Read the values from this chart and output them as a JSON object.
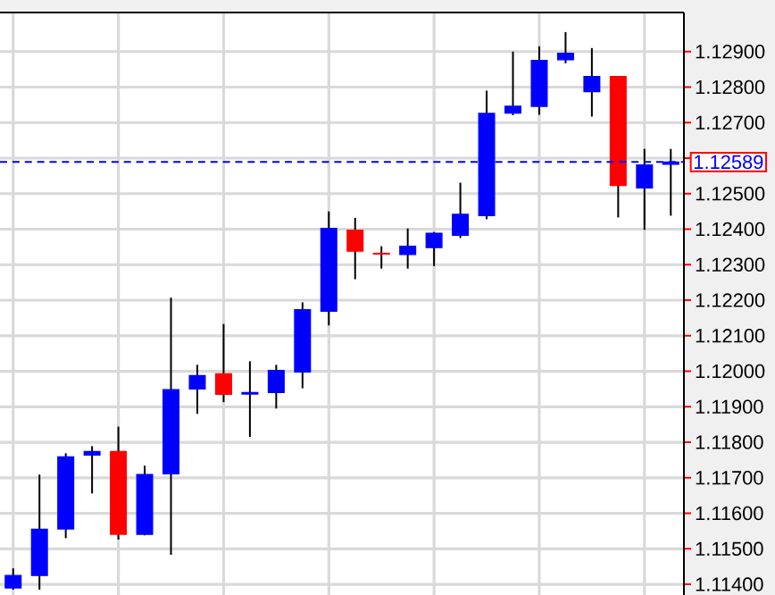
{
  "chart_data": {
    "type": "candlestick",
    "categories": [
      null,
      null,
      null,
      null,
      null,
      null,
      null,
      null,
      null,
      null,
      null,
      null,
      null,
      null,
      null,
      null,
      null,
      null,
      null,
      null,
      null,
      null,
      null,
      null,
      null,
      null
    ],
    "ohlc": [
      [
        1.1139,
        1.11445,
        1.11385,
        1.11425
      ],
      [
        1.11425,
        1.11709,
        1.11385,
        1.11555
      ],
      [
        1.11556,
        1.11769,
        1.1153,
        1.11759
      ],
      [
        1.11764,
        1.11789,
        1.11656,
        1.11774
      ],
      [
        1.11774,
        1.11844,
        1.11526,
        1.11541
      ],
      [
        1.11541,
        1.11734,
        1.11538,
        1.11709
      ],
      [
        1.11711,
        1.12207,
        1.11483,
        1.11948
      ],
      [
        1.1195,
        1.12018,
        1.1188,
        1.11988
      ],
      [
        1.11993,
        1.12133,
        1.11913,
        1.11935
      ],
      [
        1.11936,
        1.12028,
        1.11815,
        1.1194
      ],
      [
        1.1194,
        1.12018,
        1.11895,
        1.12002
      ],
      [
        1.11998,
        1.12194,
        1.11952,
        1.12173
      ],
      [
        1.12169,
        1.1245,
        1.12129,
        1.12402
      ],
      [
        1.12397,
        1.12432,
        1.12259,
        1.12338
      ],
      [
        1.12332,
        1.12352,
        1.12289,
        1.1233
      ],
      [
        1.12329,
        1.12402,
        1.12289,
        1.12352
      ],
      [
        1.12348,
        1.12392,
        1.12296,
        1.12388
      ],
      [
        1.12383,
        1.12531,
        1.12375,
        1.12442
      ],
      [
        1.12438,
        1.1279,
        1.12428,
        1.12726
      ],
      [
        1.12727,
        1.129,
        1.12721,
        1.12746
      ],
      [
        1.12746,
        1.12915,
        1.12722,
        1.12875
      ],
      [
        1.12877,
        1.12955,
        1.12867,
        1.12895
      ],
      [
        1.12787,
        1.1291,
        1.12717,
        1.1283
      ],
      [
        1.1283,
        1.1283,
        1.12433,
        1.12523
      ],
      [
        1.12516,
        1.12626,
        1.12398,
        1.12581
      ],
      [
        1.12583,
        1.12626,
        1.12438,
        1.12589
      ]
    ],
    "colors": [
      "#0000ff",
      "#0000ff",
      "#0000ff",
      "#0000ff",
      "#ff0000",
      "#0000ff",
      "#0000ff",
      "#0000ff",
      "#ff0000",
      "#0000ff",
      "#0000ff",
      "#0000ff",
      "#0000ff",
      "#ff0000",
      "#ff0000",
      "#0000ff",
      "#0000ff",
      "#0000ff",
      "#0000ff",
      "#0000ff",
      "#0000ff",
      "#0000ff",
      "#0000ff",
      "#ff0000",
      "#0000ff",
      "#0000ff"
    ],
    "ylim": [
      1.1137,
      1.1301
    ],
    "yticks": [
      {
        "value": 1.114,
        "label": "1.11400"
      },
      {
        "value": 1.115,
        "label": "1.11500"
      },
      {
        "value": 1.116,
        "label": "1.11600"
      },
      {
        "value": 1.117,
        "label": "1.11700"
      },
      {
        "value": 1.118,
        "label": "1.11800"
      },
      {
        "value": 1.119,
        "label": "1.11900"
      },
      {
        "value": 1.12,
        "label": "1.12000"
      },
      {
        "value": 1.121,
        "label": "1.12100"
      },
      {
        "value": 1.122,
        "label": "1.12200"
      },
      {
        "value": 1.123,
        "label": "1.12300"
      },
      {
        "value": 1.124,
        "label": "1.12400"
      },
      {
        "value": 1.125,
        "label": "1.12500"
      },
      {
        "value": 1.126,
        "label": null
      },
      {
        "value": 1.127,
        "label": "1.12700"
      },
      {
        "value": 1.128,
        "label": "1.12800"
      },
      {
        "value": 1.129,
        "label": "1.12900"
      }
    ],
    "ref_lines": [
      {
        "axis": "y",
        "value": 1.12589,
        "label": "1.12589",
        "color": "#0000ff",
        "line_style": "dashed"
      }
    ],
    "grid": true
  }
}
